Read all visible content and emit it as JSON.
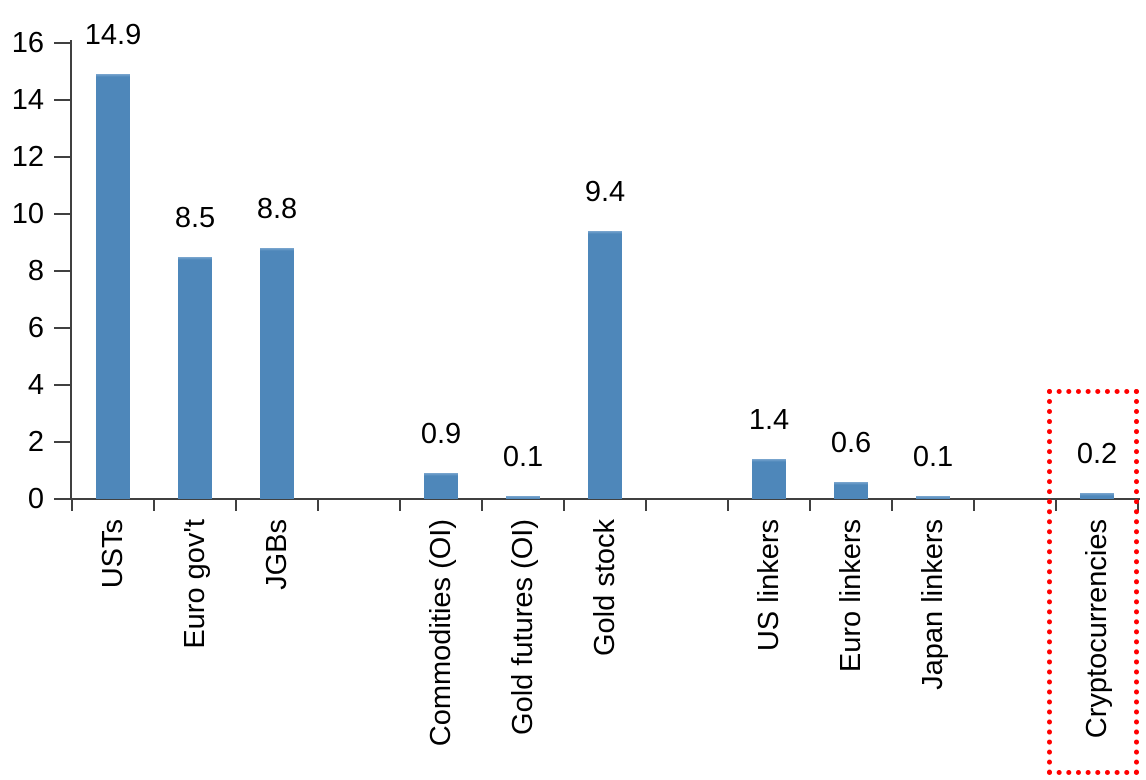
{
  "chart_data": {
    "type": "bar",
    "title": "",
    "xlabel": "",
    "ylabel": "",
    "categories": [
      "USTs",
      "Euro gov't",
      "JGBs",
      "",
      "Commodities (OI)",
      "Gold futures (OI)",
      "Gold stock",
      "",
      "US linkers",
      "Euro linkers",
      "Japan linkers",
      "",
      "Cryptocurrencies"
    ],
    "values": [
      14.9,
      8.5,
      8.8,
      null,
      0.9,
      0.1,
      9.4,
      null,
      1.4,
      0.6,
      0.1,
      null,
      0.2
    ],
    "bar_labels": [
      "14.9",
      "8.5",
      "8.8",
      "",
      "0.9",
      "0.1",
      "9.4",
      "",
      "1.4",
      "0.6",
      "0.1",
      "",
      "0.2"
    ],
    "yticks": [
      0,
      2,
      4,
      6,
      8,
      10,
      12,
      14,
      16
    ],
    "ylim": [
      0,
      16
    ],
    "grid": false,
    "legend": null,
    "colors": {
      "bar": "#4e87ba",
      "bar_top_highlight": "#7fa9d1",
      "axis": "#404040",
      "text": "#000000",
      "highlight_box": "#ff0000",
      "background": "#ffffff"
    },
    "highlight": {
      "style": "red-dotted-box",
      "category_index": 12,
      "category_label": "Cryptocurrencies"
    }
  }
}
